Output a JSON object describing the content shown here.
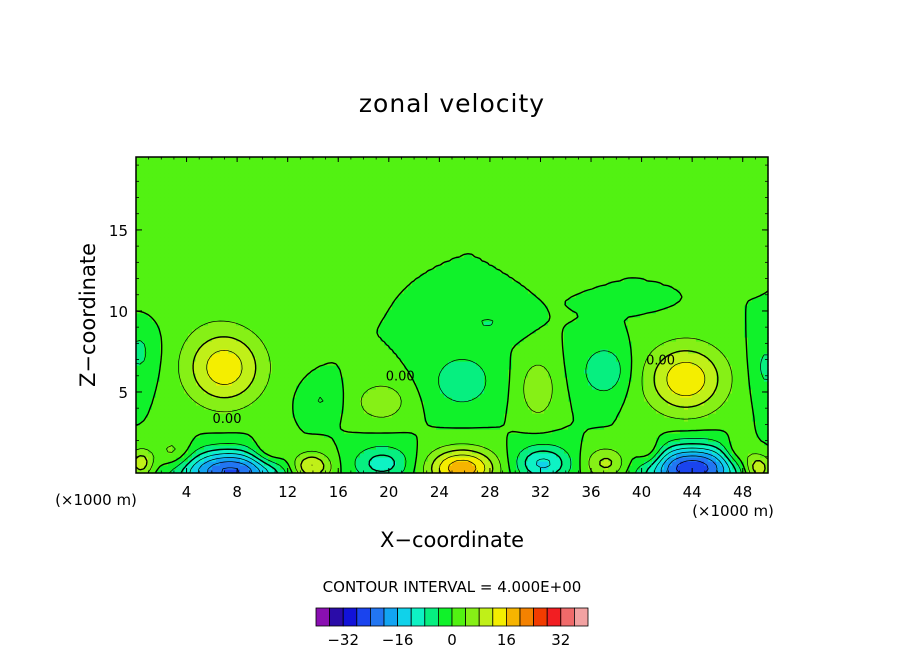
{
  "chart_data": {
    "type": "heatmap",
    "title": "zonal velocity",
    "xlabel": "X−coordinate",
    "ylabel": "Z−coordinate",
    "x_unit_left": "(×1000 m)",
    "x_unit_right": "(×1000 m)",
    "xlim": [
      0,
      50
    ],
    "ylim": [
      0,
      19.5
    ],
    "x_ticks": [
      4,
      8,
      12,
      16,
      20,
      24,
      28,
      32,
      36,
      40,
      44,
      48
    ],
    "y_ticks": [
      5,
      10,
      15
    ],
    "contour_interval_text": "CONTOUR INTERVAL = 4.000E+00",
    "contour_interval": 4,
    "contour_labels": [
      {
        "x": 7.2,
        "y": 3.1,
        "text": "0.00"
      },
      {
        "x": 20.9,
        "y": 5.7,
        "text": "0.00"
      },
      {
        "x": 41.5,
        "y": 6.7,
        "text": "0.00"
      }
    ],
    "colorbar": {
      "bin_edges": [
        -36,
        -32,
        -28,
        -24,
        -20,
        -16,
        -12,
        -8,
        -4,
        0,
        4,
        8,
        12,
        16,
        20,
        24,
        28,
        32,
        36
      ],
      "tick_values": [
        -32,
        -16,
        0,
        16,
        32
      ],
      "tick_labels": [
        "−32",
        "−16",
        "0",
        "16",
        "32"
      ],
      "colors": [
        "#8a0fb2",
        "#2a0ca8",
        "#1212d8",
        "#1a44ee",
        "#2276f2",
        "#12a4f2",
        "#10d2ea",
        "#0ef2c4",
        "#06ef80",
        "#10f22a",
        "#52f212",
        "#86f016",
        "#c0f018",
        "#f4ee00",
        "#f6b400",
        "#f48200",
        "#f23c00",
        "#f21e22",
        "#f06a6a",
        "#f2a2a2"
      ]
    },
    "features": [
      {
        "x": 7,
        "y": 6.5,
        "peak": 14.5,
        "sx": 3.2,
        "sy": 2.4
      },
      {
        "x": 43.5,
        "y": 5.8,
        "peak": 15,
        "sx": 3.2,
        "sy": 2.2
      },
      {
        "x": 34.6,
        "y": 16.5,
        "peak": 1.8,
        "sx": 1.8,
        "sy": 3.5
      },
      {
        "x": 49,
        "y": 13.7,
        "peak": 1.8,
        "sx": 0.8,
        "sy": 1.4
      },
      {
        "x": 3,
        "y": 13,
        "peak": 3,
        "sx": 5,
        "sy": 3.5
      },
      {
        "x": 25.8,
        "y": 5.7,
        "peak": -7.8,
        "sx": 2.3,
        "sy": 1.6
      },
      {
        "x": 37.1,
        "y": 6.3,
        "peak": -7.6,
        "sx": 1.9,
        "sy": 1.6
      },
      {
        "x": 27.8,
        "y": 9.3,
        "peak": -4.2,
        "sx": 2.2,
        "sy": 0.9
      },
      {
        "x": 38.6,
        "y": 10.6,
        "peak": -2.8,
        "sx": 2.5,
        "sy": 0.5
      },
      {
        "x": 0.3,
        "y": 7.5,
        "peak": -5,
        "sx": 1.5,
        "sy": 2
      },
      {
        "x": 49.8,
        "y": 6.5,
        "peak": -5,
        "sx": 1.2,
        "sy": 2
      },
      {
        "x": 14.6,
        "y": 4.5,
        "peak": -4.2,
        "sx": 1.4,
        "sy": 1
      },
      {
        "x": 19.4,
        "y": 4.4,
        "peak": 7.6,
        "sx": 2,
        "sy": 1.2
      },
      {
        "x": 31.8,
        "y": 5.2,
        "peak": 7.8,
        "sx": 1.4,
        "sy": 1.8
      },
      {
        "x": 7.5,
        "y": 0.1,
        "peak": -25,
        "sx": 4,
        "sy": 1.3
      },
      {
        "x": 44,
        "y": 0.3,
        "peak": -27,
        "sx": 3.8,
        "sy": 1.4
      },
      {
        "x": 25.8,
        "y": 0.3,
        "peak": 19,
        "sx": 2.7,
        "sy": 1.2
      },
      {
        "x": 13.8,
        "y": 0.4,
        "peak": 14,
        "sx": 1.6,
        "sy": 0.9
      },
      {
        "x": 49.2,
        "y": 0.3,
        "peak": 14,
        "sx": 1.1,
        "sy": 0.9
      },
      {
        "x": 0.4,
        "y": 0.6,
        "peak": 11,
        "sx": 1,
        "sy": 0.9
      },
      {
        "x": 32.2,
        "y": 0.6,
        "peak": -13,
        "sx": 2.2,
        "sy": 1.1
      },
      {
        "x": 37.3,
        "y": 0.6,
        "peak": 10,
        "sx": 1.8,
        "sy": 1
      },
      {
        "x": 19.5,
        "y": 0.6,
        "peak": -10,
        "sx": 2.3,
        "sy": 1.1
      },
      {
        "x": 3,
        "y": 1.2,
        "peak": 7,
        "sx": 1.5,
        "sy": 1
      },
      {
        "x": 10.6,
        "y": 1.2,
        "peak": 8,
        "sx": 1.5,
        "sy": 1
      },
      {
        "x": 40.6,
        "y": 1.2,
        "peak": 8,
        "sx": 1.2,
        "sy": 1
      },
      {
        "x": 47.6,
        "y": 1.2,
        "peak": 8,
        "sx": 1.2,
        "sy": 1
      }
    ]
  }
}
